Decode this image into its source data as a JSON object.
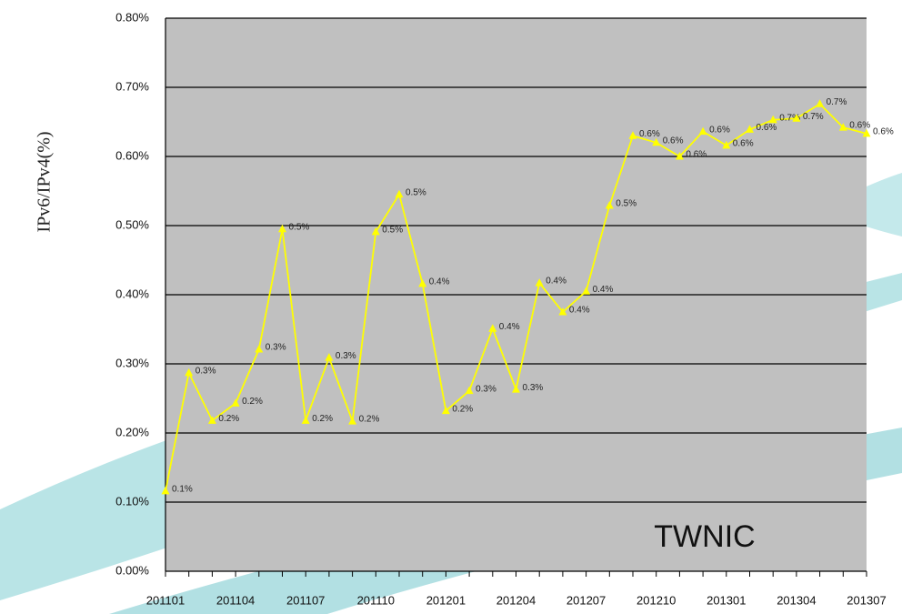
{
  "chart_data": {
    "type": "line",
    "y_label": "IPv6/IPv4(%)",
    "annotation": "TWNIC",
    "categories": [
      "201101",
      null,
      null,
      "201104",
      null,
      null,
      "201107",
      null,
      null,
      "201110",
      null,
      null,
      "201201",
      null,
      null,
      "201204",
      null,
      null,
      "201207",
      null,
      null,
      "201210",
      null,
      null,
      "201301",
      null,
      null,
      "201304",
      null,
      null,
      "201307"
    ],
    "series": [
      {
        "name": "IPv6/IPv4",
        "color": "#ffff00",
        "values": [
          0.116,
          0.287,
          0.218,
          0.243,
          0.321,
          0.495,
          0.218,
          0.309,
          0.217,
          0.491,
          0.545,
          0.416,
          0.232,
          0.261,
          0.351,
          0.263,
          0.417,
          0.375,
          0.405,
          0.529,
          0.63,
          0.62,
          0.6,
          0.636,
          0.616,
          0.639,
          0.653,
          0.655,
          0.676,
          0.642,
          0.633
        ],
        "value_labels": [
          "0.1%",
          "0.3%",
          "0.2%",
          "0.2%",
          "0.3%",
          "0.5%",
          "0.2%",
          "0.3%",
          "0.2%",
          "0.5%",
          "0.5%",
          "0.4%",
          "0.2%",
          "0.3%",
          "0.4%",
          "0.3%",
          "0.4%",
          "0.4%",
          "0.4%",
          "0.5%",
          "0.6%",
          "0.6%",
          "0.6%",
          "0.6%",
          "0.6%",
          "0.6%",
          "0.7%",
          "0.7%",
          "0.7%",
          "0.6%",
          "0.6%"
        ]
      }
    ],
    "ylim": [
      0,
      0.8
    ],
    "yticks": [
      {
        "value": 0,
        "label": "0.00%"
      },
      {
        "value": 0.1,
        "label": "0.10%"
      },
      {
        "value": 0.2,
        "label": "0.20%"
      },
      {
        "value": 0.3,
        "label": "0.30%"
      },
      {
        "value": 0.4,
        "label": "0.40%"
      },
      {
        "value": 0.5,
        "label": "0.50%"
      },
      {
        "value": 0.6,
        "label": "0.60%"
      },
      {
        "value": 0.7,
        "label": "0.70%"
      },
      {
        "value": 0.8,
        "label": "0.80%"
      }
    ],
    "grid": true,
    "plot_background": "#c0c0c0"
  }
}
